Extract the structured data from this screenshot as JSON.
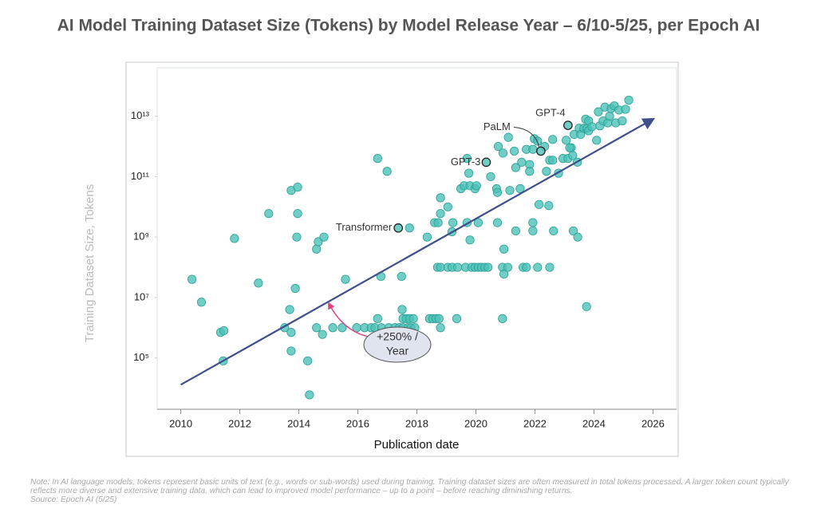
{
  "chart_data": {
    "type": "scatter",
    "title": "AI Model Training Dataset Size (Tokens) by Model Release Year – 6/10-5/25, per Epoch AI",
    "xlabel": "Publication date",
    "ylabel": "Training Dataset Size, Tokens",
    "log_y": true,
    "grid": false,
    "color": "#4cc2b8",
    "xlim": [
      2009.2,
      2026.8
    ],
    "xticks": [
      2010,
      2012,
      2014,
      2016,
      2018,
      2020,
      2022,
      2024,
      2026
    ],
    "ylim": [
      2000,
      400000000000000
    ],
    "yticks": [
      {
        "value": 100000,
        "label": "10⁵"
      },
      {
        "value": 10000000,
        "label": "10⁷"
      },
      {
        "value": 1000000000,
        "label": "10⁹"
      },
      {
        "value": 100000000000,
        "label": "10¹¹"
      },
      {
        "value": 10000000000000,
        "label": "10¹³"
      }
    ],
    "x": [
      2010.38,
      2010.7,
      2011.35,
      2011.46,
      2011.44,
      2011.82,
      2012.63,
      2012.98,
      2013.52,
      2013.69,
      2013.74,
      2013.74,
      2013.74,
      2013.88,
      2013.93,
      2013.96,
      2013.96,
      2014.3,
      2014.36,
      2014.6,
      2014.6,
      2014.66,
      2014.85,
      2014.8,
      2015.15,
      2015.47,
      2015.58,
      2015.96,
      2016.23,
      2016.45,
      2016.58,
      2016.67,
      2016.67,
      2016.78,
      2016.99,
      2016.8,
      2017.05,
      2017.26,
      2017.4,
      2017.53,
      2017.7,
      2017.8,
      2017.93,
      2017.48,
      2017.5,
      2017.53,
      2017.64,
      2017.75,
      2017.88,
      2017.75,
      2018.35,
      2018.43,
      2018.54,
      2018.65,
      2018.75,
      2018.8,
      2018.7,
      2018.8,
      2018.6,
      2018.72,
      2018.8,
      2018.8,
      2019.05,
      2019.19,
      2019.38,
      2019.65,
      2019.86,
      2019.97,
      2020.08,
      2020.19,
      2020.3,
      2020.41,
      2019.05,
      2019.19,
      2019.22,
      2019.35,
      2019.49,
      2019.6,
      2019.7,
      2019.7,
      2019.76,
      2019.8,
      2019.8,
      2019.97,
      2020.02,
      2020.08,
      2020.5,
      2020.7,
      2020.73,
      2020.73,
      2020.76,
      2020.9,
      2020.95,
      2020.95,
      2021.08,
      2020.9,
      2020.92,
      2021.1,
      2021.15,
      2021.3,
      2021.35,
      2021.35,
      2021.5,
      2021.55,
      2021.6,
      2021.71,
      2021.71,
      2021.82,
      2021.82,
      2021.93,
      2021.93,
      2021.93,
      2021.98,
      2022.09,
      2022.09,
      2022.14,
      2022.33,
      2022.39,
      2022.5,
      2022.5,
      2022.6,
      2022.6,
      2022.47,
      2022.63,
      2022.8,
      2022.95,
      2023.06,
      2023.12,
      2023.23,
      2023.28,
      2023.33,
      2023.18,
      2023.3,
      2023.45,
      2023.44,
      2023.75,
      2023.5,
      2023.55,
      2023.66,
      2023.72,
      2023.77,
      2023.82,
      2023.82,
      2023.93,
      2024.09,
      2024.15,
      2024.2,
      2024.31,
      2024.37,
      2024.47,
      2024.53,
      2024.58,
      2024.69,
      2024.74,
      2024.85,
      2024.96,
      2025.07,
      2025.18
    ],
    "values": [
      40000000,
      7000000,
      700000,
      800000,
      80000,
      900000000,
      30000000,
      6000000000,
      1000000,
      4000000,
      35000000000,
      170000,
      700000,
      20000000,
      1000000000,
      45000000000,
      6000000000,
      80000,
      6000,
      1000000,
      400000000,
      700000000,
      1000000000,
      600000,
      1000000,
      1000000,
      40000000,
      1000000,
      1000000,
      1000000,
      1000000,
      400000000000,
      2000000,
      50000000,
      150000000000,
      1000000,
      1000000,
      1000000,
      1000000,
      1000000,
      1000000,
      1000000,
      1000000,
      50000000,
      4000000,
      2000000,
      2000000,
      2000000,
      2000000,
      2000000000,
      1000000000,
      2000000,
      2000000,
      2000000,
      2000000,
      1000000,
      100000000,
      100000000,
      3000000000,
      3000000000,
      6000000000,
      20000000000,
      100000000,
      100000000,
      100000000,
      100000000,
      100000000,
      100000000,
      100000000,
      100000000,
      100000000,
      100000000,
      10000000000,
      1500000000,
      3000000000,
      2000000,
      40000000000,
      50000000000,
      3000000000,
      400000000000,
      130000000000,
      800000000,
      50000000000,
      40000000000,
      50000000000,
      3000000000,
      100000000000,
      40000000000,
      30000000000,
      3000000000,
      1000000000000,
      100000000,
      400000000,
      60000000,
      100000000,
      2000000,
      600000000000,
      2000000000000,
      35000000000,
      700000000000,
      200000000000,
      1600000000,
      40000000000,
      300000000000,
      100000000,
      100000000,
      800000000000,
      250000000000,
      150000000000,
      3000000000,
      1600000000,
      800000000000,
      1800000000000,
      1500000000000,
      100000000,
      12000000000,
      1000000000000,
      150000000000,
      350000000000,
      100000000,
      350000000000,
      1700000000000,
      11000000000,
      1600000000,
      130000000000,
      400000000000,
      1600000000000,
      400000000000,
      900000000000,
      500000000000,
      2500000000000,
      900000000000,
      1600000000,
      1000000000,
      300000000000,
      5000000,
      4000000000000,
      2500000000000,
      4000000000000,
      8000000000000,
      4000000000000,
      3300000000000,
      7000000000000,
      4500000000000,
      1600000000000,
      14000000000000,
      4800000000000,
      7000000000000,
      20000000000000,
      6000000000000,
      10000000000000,
      18000000000000,
      22000000000000,
      6000000000000,
      16000000000000,
      7000000000000,
      17000000000000,
      34000000000000
    ],
    "labeled_points": [
      {
        "label": "Transformer",
        "x": 2017.37,
        "value": 2000000000
      },
      {
        "label": "GPT-3",
        "x": 2020.35,
        "value": 300000000000
      },
      {
        "label": "PaLM",
        "x": 2022.2,
        "value": 700000000000
      },
      {
        "label": "GPT-4",
        "x": 2023.12,
        "value": 5000000000000
      }
    ],
    "trend": {
      "label": [
        "+250% /",
        "Year"
      ],
      "color": "#3f4f8c",
      "x": [
        2010,
        2026
      ],
      "values": [
        13000,
        8000000000000
      ]
    },
    "note": "Note: In AI language models, tokens represent basic units of text (e.g., words or sub-words) used during training. Training dataset sizes are often measured in total tokens processed. A larger token count typically reflects more diverse and extensive training data, which can lead to improved model performance – up to a point – before reaching diminishing returns.",
    "source": "Source: Epoch AI (5/25)"
  }
}
